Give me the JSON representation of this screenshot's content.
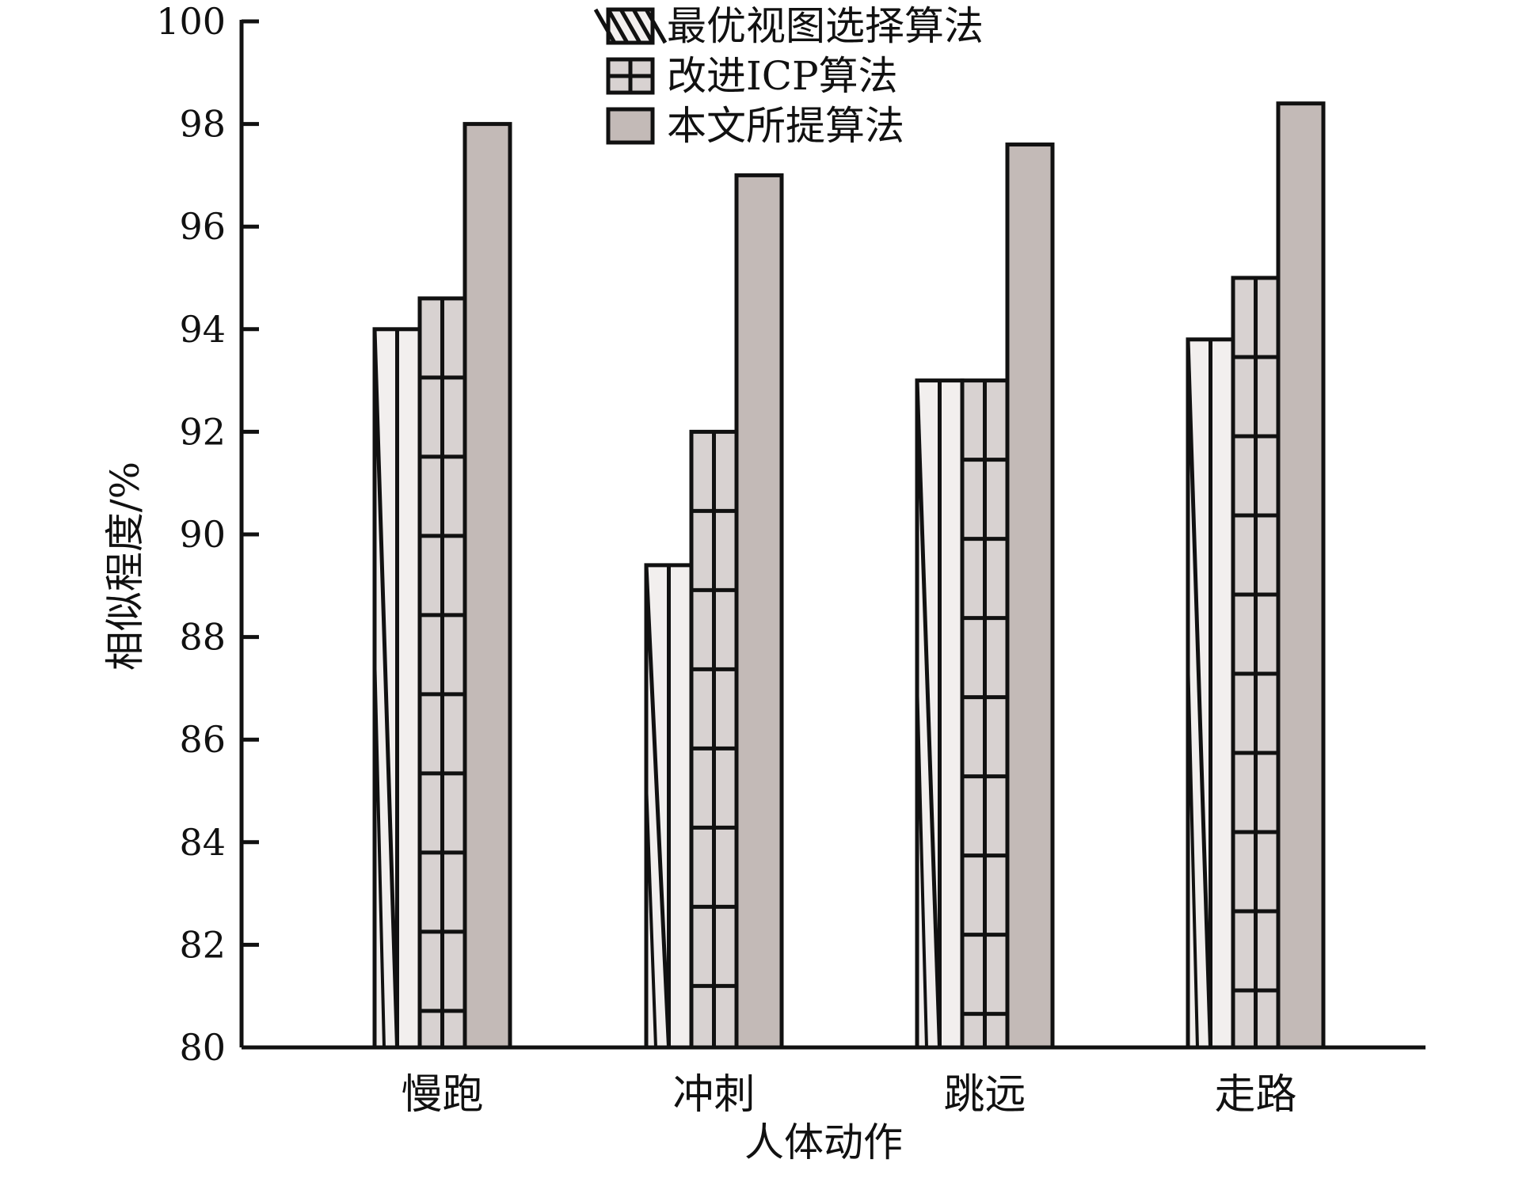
{
  "chart_data": {
    "type": "bar",
    "title": "",
    "xlabel": "人体动作",
    "ylabel": "相似程度/%",
    "ylim": [
      80,
      100
    ],
    "yticks": [
      "80",
      "82",
      "84",
      "86",
      "88",
      "90",
      "92",
      "94",
      "96",
      "98",
      "100"
    ],
    "categories": [
      "慢跑",
      "冲刺",
      "跳远",
      "走路"
    ],
    "series": [
      {
        "name": "最优视图选择算法",
        "values": [
          94.0,
          89.4,
          93.0,
          93.8
        ],
        "pattern": "diagonal-stripes",
        "color": "#f2efee"
      },
      {
        "name": "改进ICP算法",
        "values": [
          94.6,
          92.0,
          93.0,
          95.0
        ],
        "pattern": "grid",
        "color": "#d8d2d1"
      },
      {
        "name": "本文所提算法",
        "values": [
          98.0,
          97.0,
          97.6,
          98.4
        ],
        "pattern": "solid",
        "color": "#c3bab7"
      }
    ],
    "legend_position": "top-center",
    "grid": false
  }
}
